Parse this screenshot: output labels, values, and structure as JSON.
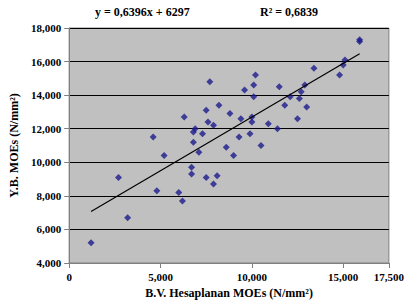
{
  "chart_data": {
    "type": "scatter",
    "x_label": "B.V. Hesaplanan MOEs (N/mm²)",
    "y_label": "Y.B. MOEs (N/mm²)",
    "annotations": [
      "y = 0,6396x + 6297",
      "R² = 0,6839"
    ],
    "x": [
      1200,
      2700,
      3200,
      4600,
      4800,
      5200,
      6000,
      6200,
      6300,
      6700,
      6700,
      6800,
      6800,
      6900,
      7100,
      7300,
      7500,
      7500,
      7600,
      7700,
      7900,
      7900,
      8100,
      8200,
      8600,
      8800,
      9000,
      9300,
      9400,
      9600,
      9900,
      10000,
      10000,
      10100,
      10100,
      10200,
      10500,
      10900,
      11400,
      11500,
      11800,
      12100,
      12500,
      12600,
      12700,
      12900,
      13000,
      13400,
      14800,
      15000,
      15100,
      15900,
      15900
    ],
    "values": [
      5200,
      9100,
      6700,
      11500,
      8300,
      10400,
      8200,
      7700,
      12700,
      9300,
      9700,
      11200,
      11800,
      12000,
      10600,
      11700,
      13100,
      9100,
      12400,
      14800,
      8700,
      12200,
      9200,
      13400,
      10900,
      12900,
      10400,
      11500,
      12600,
      14300,
      11700,
      12400,
      12700,
      13900,
      14600,
      15200,
      11000,
      12300,
      12000,
      14500,
      13400,
      13900,
      12600,
      13800,
      14200,
      14600,
      13300,
      15600,
      15200,
      15800,
      16100,
      17200,
      17300
    ],
    "color": "#1c1c8c",
    "marker": "diamond",
    "trendline": {
      "x": [
        1200,
        15900
      ],
      "values": [
        7064,
        16467
      ],
      "color": "#000000",
      "line_style": "solid"
    },
    "xlim": [
      0,
      17500
    ],
    "xticks": [
      0,
      5000,
      10000,
      15000
    ],
    "ylim": [
      4000,
      18000
    ],
    "yticks": [
      4000,
      6000,
      8000,
      10000,
      12000,
      14000,
      16000,
      18000
    ],
    "grid": true
  }
}
